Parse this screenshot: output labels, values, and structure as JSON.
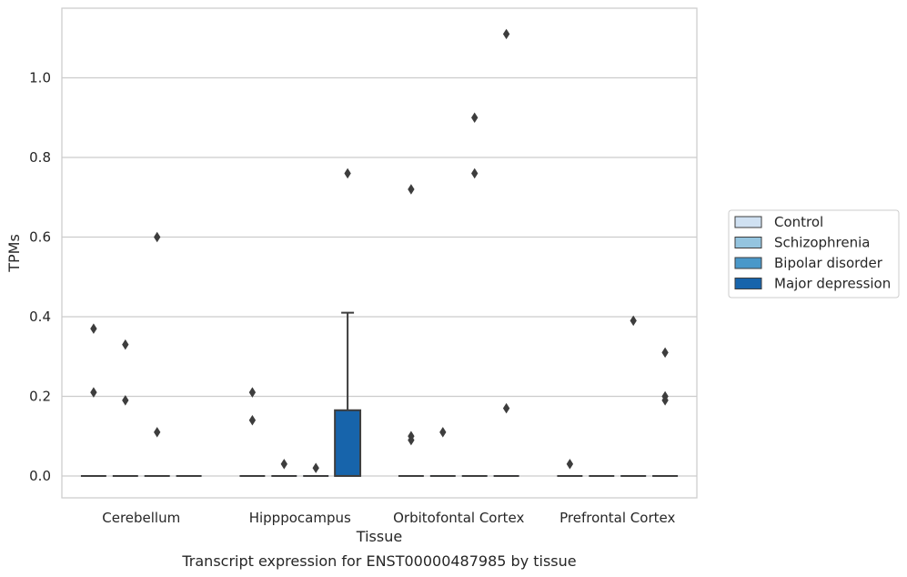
{
  "chart_data": {
    "type": "box",
    "title": "",
    "caption": "Transcript expression for ENST00000487985 by tissue",
    "xlabel": "Tissue",
    "ylabel": "TPMs",
    "ylim": [
      -0.055,
      1.175
    ],
    "yticks": [
      0.0,
      0.2,
      0.4,
      0.6,
      0.8,
      1.0
    ],
    "ytick_labels": [
      "0.0",
      "0.2",
      "0.4",
      "0.6",
      "0.8",
      "1.0"
    ],
    "grid": "horizontal",
    "legend_position": "right",
    "categories": [
      "Cerebellum",
      "Hipppocampus",
      "Orbitofontal Cortex",
      "Prefrontal Cortex"
    ],
    "series": [
      {
        "name": "Control",
        "color": "#d0e1f2",
        "boxes": [
          {
            "q1": 0,
            "median": 0,
            "q3": 0,
            "whisker_low": 0,
            "whisker_high": 0,
            "outliers": [
              0.37,
              0.21
            ]
          },
          {
            "q1": 0,
            "median": 0,
            "q3": 0,
            "whisker_low": 0,
            "whisker_high": 0,
            "outliers": [
              0.21,
              0.14
            ]
          },
          {
            "q1": 0,
            "median": 0,
            "q3": 0,
            "whisker_low": 0,
            "whisker_high": 0,
            "outliers": [
              0.72,
              0.1,
              0.09
            ]
          },
          {
            "q1": 0,
            "median": 0,
            "q3": 0,
            "whisker_low": 0,
            "whisker_high": 0,
            "outliers": [
              0.03
            ]
          }
        ]
      },
      {
        "name": "Schizophrenia",
        "color": "#94c4df",
        "boxes": [
          {
            "q1": 0,
            "median": 0,
            "q3": 0,
            "whisker_low": 0,
            "whisker_high": 0,
            "outliers": [
              0.33,
              0.19
            ]
          },
          {
            "q1": 0,
            "median": 0,
            "q3": 0,
            "whisker_low": 0,
            "whisker_high": 0,
            "outliers": [
              0.03
            ]
          },
          {
            "q1": 0,
            "median": 0,
            "q3": 0,
            "whisker_low": 0,
            "whisker_high": 0,
            "outliers": [
              0.11
            ]
          },
          {
            "q1": 0,
            "median": 0,
            "q3": 0,
            "whisker_low": 0,
            "whisker_high": 0,
            "outliers": []
          }
        ]
      },
      {
        "name": "Bipolar disorder",
        "color": "#4a98c9",
        "boxes": [
          {
            "q1": 0,
            "median": 0,
            "q3": 0,
            "whisker_low": 0,
            "whisker_high": 0,
            "outliers": [
              0.6,
              0.11
            ]
          },
          {
            "q1": 0,
            "median": 0,
            "q3": 0,
            "whisker_low": 0,
            "whisker_high": 0,
            "outliers": [
              0.02
            ]
          },
          {
            "q1": 0,
            "median": 0,
            "q3": 0,
            "whisker_low": 0,
            "whisker_high": 0,
            "outliers": [
              0.9,
              0.76
            ]
          },
          {
            "q1": 0,
            "median": 0,
            "q3": 0,
            "whisker_low": 0,
            "whisker_high": 0,
            "outliers": [
              0.39
            ]
          }
        ]
      },
      {
        "name": "Major depression",
        "color": "#1764ab",
        "boxes": [
          {
            "q1": 0,
            "median": 0,
            "q3": 0,
            "whisker_low": 0,
            "whisker_high": 0,
            "outliers": []
          },
          {
            "q1": 0,
            "median": 0,
            "q3": 0.165,
            "whisker_low": 0,
            "whisker_high": 0.41,
            "outliers": [
              0.76
            ]
          },
          {
            "q1": 0,
            "median": 0,
            "q3": 0,
            "whisker_low": 0,
            "whisker_high": 0,
            "outliers": [
              1.11,
              0.17
            ]
          },
          {
            "q1": 0,
            "median": 0,
            "q3": 0,
            "whisker_low": 0,
            "whisker_high": 0,
            "outliers": [
              0.31,
              0.2,
              0.19
            ]
          }
        ]
      }
    ]
  }
}
